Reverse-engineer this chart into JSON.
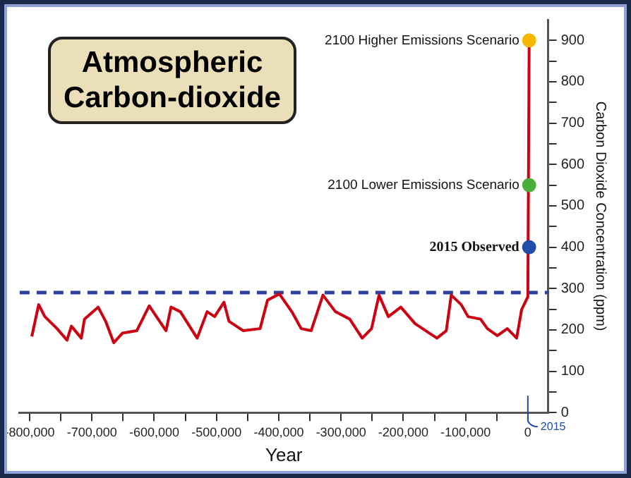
{
  "chart_data": {
    "type": "line",
    "title": "Atmospheric Carbon-dioxide",
    "xlabel": "Year",
    "ylabel": "Carbon Dioxide Concentration (ppm)",
    "xlim": [
      -816000,
      32600
    ],
    "xticks": [
      {
        "value": -800000,
        "label": "-800,000"
      },
      {
        "value": -750000,
        "label": null
      },
      {
        "value": -700000,
        "label": "-700,000"
      },
      {
        "value": -650000,
        "label": null
      },
      {
        "value": -600000,
        "label": "-600,000"
      },
      {
        "value": -550000,
        "label": null
      },
      {
        "value": -500000,
        "label": "-500,000"
      },
      {
        "value": -450000,
        "label": null
      },
      {
        "value": -400000,
        "label": "-400,000"
      },
      {
        "value": -350000,
        "label": null
      },
      {
        "value": -300000,
        "label": "-300,000"
      },
      {
        "value": -250000,
        "label": null
      },
      {
        "value": -200000,
        "label": "-200,000"
      },
      {
        "value": -150000,
        "label": null
      },
      {
        "value": -100000,
        "label": "-100,000"
      },
      {
        "value": -50000,
        "label": null
      },
      0
    ],
    "ylim": [
      0,
      950
    ],
    "yticks": [
      0,
      {
        "value": 50,
        "label": null
      },
      100,
      {
        "value": 150,
        "label": null
      },
      200,
      {
        "value": 250,
        "label": null
      },
      300,
      {
        "value": 350,
        "label": null
      },
      400,
      {
        "value": 450,
        "label": null
      },
      500,
      {
        "value": 550,
        "label": null
      },
      600,
      {
        "value": 650,
        "label": null
      },
      700,
      {
        "value": 750,
        "label": null
      },
      800,
      {
        "value": 850,
        "label": null
      },
      900
    ],
    "grid": false,
    "legend": false,
    "series": [
      {
        "color": "#cc0011",
        "marker": "none",
        "line_style": "solid",
        "x": [
          -796500,
          -785500,
          -775500,
          -756000,
          -740000,
          -733000,
          -717000,
          -712000,
          -690000,
          -678000,
          -665000,
          -651000,
          -628000,
          -608000,
          -581000,
          -573000,
          -558000,
          -531000,
          -515000,
          -503000,
          -488000,
          -480000,
          -457000,
          -430000,
          -418000,
          -399000,
          -379000,
          -364000,
          -348000,
          -329000,
          -309000,
          -286000,
          -266000,
          -251000,
          -239000,
          -224000,
          -204000,
          -181000,
          -158000,
          -146000,
          -131000,
          -123000,
          -107000,
          -96000,
          -76000,
          -65000,
          -49000,
          -33000,
          -18000,
          -10000,
          0,
          2100
        ],
        "values": [
          184,
          261,
          232,
          203,
          175,
          209,
          180,
          226,
          255,
          221,
          169,
          192,
          198,
          258,
          198,
          255,
          244,
          180,
          244,
          232,
          267,
          221,
          198,
          203,
          272,
          287,
          244,
          203,
          198,
          284,
          244,
          226,
          180,
          203,
          284,
          232,
          255,
          215,
          192,
          180,
          198,
          284,
          261,
          232,
          226,
          203,
          186,
          203,
          180,
          249,
          280,
          900
        ]
      },
      {
        "type": "scatter",
        "name": "2015 Observed",
        "color": "#1f4fa8",
        "marker": "circle",
        "x": [
          2015
        ],
        "values": [
          400
        ]
      },
      {
        "type": "scatter",
        "name": "2100 Lower Emissions Scenario",
        "color": "#4cae3a",
        "marker": "circle",
        "x": [
          2100
        ],
        "values": [
          550
        ]
      },
      {
        "type": "scatter",
        "name": "2100 Higher Emissions Scenario",
        "color": "#f5b700",
        "marker": "circle",
        "x": [
          2100
        ],
        "values": [
          900
        ]
      }
    ],
    "ref_lines": [
      {
        "axis": "y",
        "value": 290,
        "color": "#2e3f9e",
        "line_style": "dashed"
      }
    ],
    "annotations": [
      "2015"
    ]
  }
}
